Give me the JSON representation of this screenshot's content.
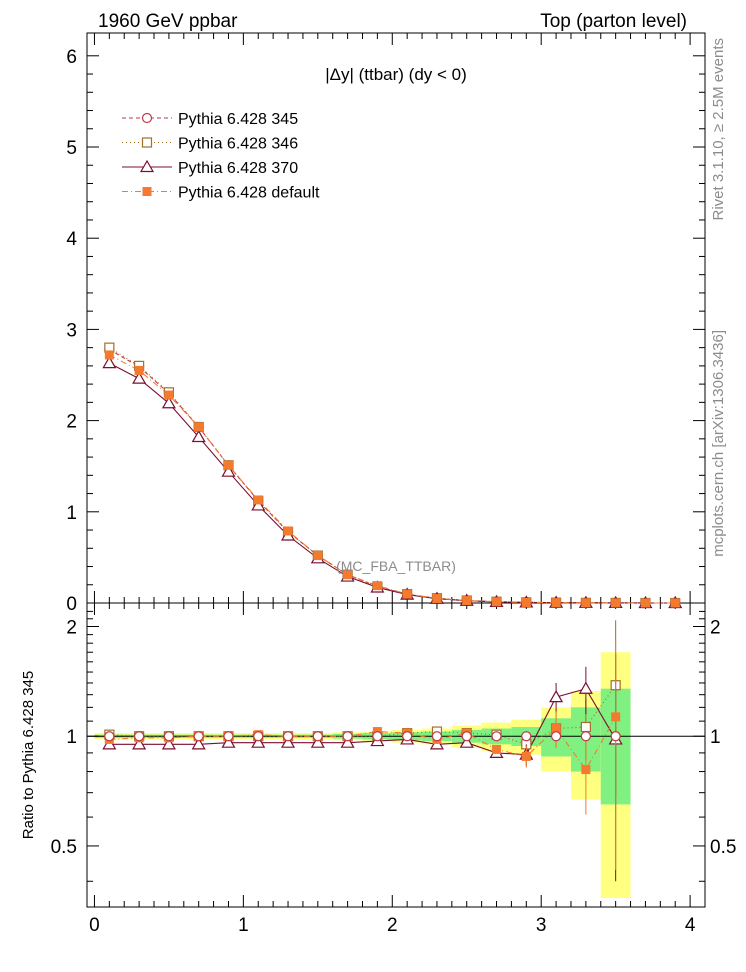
{
  "header": {
    "left": "1960 GeV ppbar",
    "right": "Top (parton level)"
  },
  "side": {
    "rivet": "Rivet 3.1.10, ≥ 2.5M events",
    "mcplots": "mcplots.cern.ch [arXiv:1306.3436]"
  },
  "chart_data": {
    "type": "line",
    "title": "|Δy| (ttbar) (dy < 0)",
    "analysis": "(MC_FBA_TTBAR)",
    "xlabel": "",
    "ylabel": "",
    "ratio_ylabel": "Ratio to Pythia 6.428 345",
    "xlim": [
      -0.05,
      4.1
    ],
    "ylim": [
      0,
      6.25
    ],
    "ratio_ylim": [
      0.34,
      2.32
    ],
    "x_ticks": [
      "0",
      "1",
      "2",
      "3",
      "4"
    ],
    "y_ticks": [
      "0",
      "1",
      "2",
      "3",
      "4",
      "5",
      "6"
    ],
    "ratio_y_ticks": [
      "0.5",
      "1",
      "2"
    ],
    "legend_position": "top-left",
    "x": [
      0.1,
      0.3,
      0.5,
      0.7,
      0.9,
      1.1,
      1.3,
      1.5,
      1.7,
      1.9,
      2.1,
      2.3,
      2.5,
      2.7,
      2.9,
      3.1,
      3.3,
      3.5,
      3.7,
      3.9
    ],
    "series": [
      {
        "name": "Pythia 6.428 345",
        "color": "#c0394b",
        "marker": "circle-open",
        "dash": "4,3",
        "values": [
          2.78,
          2.59,
          2.3,
          1.93,
          1.51,
          1.12,
          0.78,
          0.52,
          0.31,
          0.18,
          0.095,
          0.05,
          0.026,
          0.014,
          0.007,
          0.004,
          0.002,
          0.001,
          0.0,
          0.0
        ]
      },
      {
        "name": "Pythia 6.428 346",
        "color": "#a0702a",
        "marker": "square-open",
        "dash": "1,3",
        "values": [
          2.8,
          2.6,
          2.31,
          1.93,
          1.51,
          1.12,
          0.78,
          0.52,
          0.31,
          0.18,
          0.098,
          0.052,
          0.027,
          0.014,
          0.007,
          0.004,
          0.002,
          0.001,
          0.0,
          0.0
        ]
      },
      {
        "name": "Pythia 6.428 370",
        "color": "#7a0f2e",
        "marker": "triangle-open",
        "dash": "",
        "values": [
          2.63,
          2.46,
          2.19,
          1.82,
          1.44,
          1.07,
          0.74,
          0.49,
          0.29,
          0.17,
          0.092,
          0.047,
          0.025,
          0.012,
          0.006,
          0.004,
          0.002,
          0.001,
          0.0,
          0.0
        ]
      },
      {
        "name": "Pythia 6.428 default",
        "color": "#f47a30",
        "marker": "square-filled",
        "dash": "6,3,1,3",
        "values": [
          2.72,
          2.55,
          2.28,
          1.93,
          1.51,
          1.13,
          0.79,
          0.52,
          0.31,
          0.19,
          0.098,
          0.05,
          0.027,
          0.013,
          0.006,
          0.004,
          0.002,
          0.001,
          0.0,
          0.0
        ]
      }
    ],
    "ratio": {
      "x": [
        0.1,
        0.3,
        0.5,
        0.7,
        0.9,
        1.1,
        1.3,
        1.5,
        1.7,
        1.9,
        2.1,
        2.3,
        2.5,
        2.7,
        2.9,
        3.1,
        3.3,
        3.5
      ],
      "band_green": [
        0.01,
        0.01,
        0.01,
        0.01,
        0.01,
        0.01,
        0.01,
        0.01,
        0.015,
        0.02,
        0.025,
        0.03,
        0.04,
        0.05,
        0.06,
        0.12,
        0.2,
        0.35
      ],
      "band_yellow": [
        0.02,
        0.02,
        0.02,
        0.02,
        0.02,
        0.02,
        0.02,
        0.02,
        0.025,
        0.03,
        0.04,
        0.05,
        0.07,
        0.09,
        0.11,
        0.2,
        0.33,
        0.7
      ],
      "series": [
        {
          "name": "Pythia 6.428 346",
          "values": [
            1.01,
            1.0,
            1.0,
            1.0,
            1.0,
            1.0,
            1.0,
            1.0,
            1.0,
            1.0,
            1.02,
            1.03,
            1.02,
            1.01,
            0.95,
            1.05,
            1.06,
            1.38
          ]
        },
        {
          "name": "Pythia 6.428 370",
          "values": [
            0.95,
            0.95,
            0.95,
            0.95,
            0.96,
            0.96,
            0.96,
            0.96,
            0.96,
            0.97,
            0.98,
            0.95,
            0.96,
            0.9,
            0.89,
            1.28,
            1.35,
            0.98
          ]
        },
        {
          "name": "Pythia 6.428 default",
          "values": [
            0.98,
            0.99,
            0.99,
            1.0,
            1.0,
            1.01,
            1.0,
            1.0,
            1.0,
            1.03,
            1.02,
            0.98,
            1.02,
            0.92,
            0.88,
            1.05,
            0.81,
            1.13
          ]
        }
      ]
    }
  }
}
